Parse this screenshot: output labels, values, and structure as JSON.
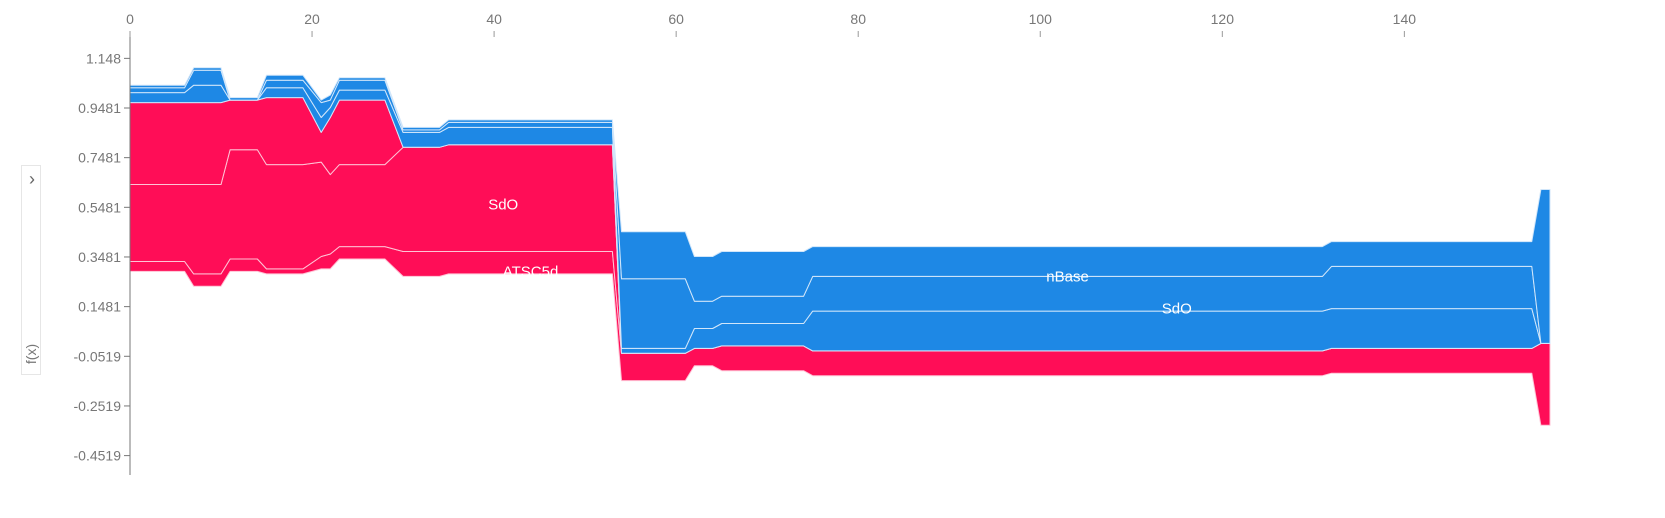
{
  "chart_data": {
    "type": "area",
    "ylabel": "f(x)",
    "x_ticks": [
      0,
      20,
      40,
      60,
      80,
      100,
      120,
      140
    ],
    "y_ticks": [
      "1.148",
      "0.9481",
      "0.7481",
      "0.5481",
      "0.3481",
      "0.1481",
      "-0.0519",
      "-0.2519",
      "-0.4519"
    ],
    "xlim": [
      0,
      156
    ],
    "ylim": [
      -0.53,
      1.23
    ],
    "colors": {
      "positive": "#ff0d57",
      "negative": "#1e88e5",
      "positive_edge": "#ffc3d5",
      "negative_edge": "#d1e6fa"
    },
    "samples": [
      {
        "x": 0,
        "base": 0.29,
        "pos": [
          0.04,
          0.31,
          0.33
        ],
        "neg": [
          0.04,
          0.02,
          0.01
        ]
      },
      {
        "x": 6,
        "base": 0.29,
        "pos": [
          0.04,
          0.31,
          0.33
        ],
        "neg": [
          0.04,
          0.02,
          0.01
        ]
      },
      {
        "x": 7,
        "base": 0.23,
        "pos": [
          0.05,
          0.36,
          0.33
        ],
        "neg": [
          0.07,
          0.06,
          0.01
        ]
      },
      {
        "x": 10,
        "base": 0.23,
        "pos": [
          0.05,
          0.36,
          0.33
        ],
        "neg": [
          0.07,
          0.06,
          0.01
        ]
      },
      {
        "x": 11,
        "base": 0.29,
        "pos": [
          0.05,
          0.44,
          0.2
        ],
        "neg": [
          0.0,
          0.0,
          0.01
        ]
      },
      {
        "x": 14,
        "base": 0.29,
        "pos": [
          0.05,
          0.44,
          0.2
        ],
        "neg": [
          0.0,
          0.0,
          0.01
        ]
      },
      {
        "x": 15,
        "base": 0.28,
        "pos": [
          0.02,
          0.42,
          0.27
        ],
        "neg": [
          0.04,
          0.03,
          0.02
        ]
      },
      {
        "x": 19,
        "base": 0.28,
        "pos": [
          0.02,
          0.42,
          0.27
        ],
        "neg": [
          0.04,
          0.03,
          0.02
        ]
      },
      {
        "x": 21,
        "base": 0.3,
        "pos": [
          0.05,
          0.38,
          0.12
        ],
        "neg": [
          0.06,
          0.06,
          0.01
        ]
      },
      {
        "x": 22,
        "base": 0.3,
        "pos": [
          0.06,
          0.32,
          0.23
        ],
        "neg": [
          0.04,
          0.03,
          0.02
        ]
      },
      {
        "x": 23,
        "base": 0.34,
        "pos": [
          0.05,
          0.33,
          0.26
        ],
        "neg": [
          0.04,
          0.04,
          0.01
        ]
      },
      {
        "x": 28,
        "base": 0.34,
        "pos": [
          0.05,
          0.33,
          0.26
        ],
        "neg": [
          0.04,
          0.04,
          0.01
        ]
      },
      {
        "x": 30,
        "base": 0.27,
        "pos": [
          0.1,
          0.42,
          0.0
        ],
        "neg": [
          0.06,
          0.01,
          0.01
        ]
      },
      {
        "x": 34,
        "base": 0.27,
        "pos": [
          0.1,
          0.42,
          0.0
        ],
        "neg": [
          0.06,
          0.01,
          0.01
        ]
      },
      {
        "x": 35,
        "base": 0.28,
        "pos": [
          0.09,
          0.43,
          0.0
        ],
        "neg": [
          0.07,
          0.02,
          0.01
        ]
      },
      {
        "x": 53,
        "base": 0.28,
        "pos": [
          0.09,
          0.43,
          0.0
        ],
        "neg": [
          0.07,
          0.02,
          0.01
        ]
      },
      {
        "x": 54,
        "base": -0.15,
        "pos": [
          0.11,
          0.0,
          0.0
        ],
        "neg": [
          0.02,
          0.28,
          0.19
        ]
      },
      {
        "x": 61,
        "base": -0.15,
        "pos": [
          0.11,
          0.0,
          0.0
        ],
        "neg": [
          0.02,
          0.28,
          0.19
        ]
      },
      {
        "x": 62,
        "base": -0.09,
        "pos": [
          0.07,
          0.0,
          0.0
        ],
        "neg": [
          0.08,
          0.11,
          0.18
        ]
      },
      {
        "x": 64,
        "base": -0.09,
        "pos": [
          0.07,
          0.0,
          0.0
        ],
        "neg": [
          0.08,
          0.11,
          0.18
        ]
      },
      {
        "x": 65,
        "base": -0.11,
        "pos": [
          0.1,
          0.0,
          0.0
        ],
        "neg": [
          0.09,
          0.11,
          0.18
        ]
      },
      {
        "x": 74,
        "base": -0.11,
        "pos": [
          0.1,
          0.0,
          0.0
        ],
        "neg": [
          0.09,
          0.11,
          0.18
        ]
      },
      {
        "x": 75,
        "base": -0.13,
        "pos": [
          0.1,
          0.0,
          0.0
        ],
        "neg": [
          0.16,
          0.14,
          0.12
        ]
      },
      {
        "x": 131,
        "base": -0.13,
        "pos": [
          0.1,
          0.0,
          0.0
        ],
        "neg": [
          0.16,
          0.14,
          0.12
        ]
      },
      {
        "x": 132,
        "base": -0.12,
        "pos": [
          0.1,
          0.0,
          0.0
        ],
        "neg": [
          0.16,
          0.17,
          0.1
        ]
      },
      {
        "x": 154,
        "base": -0.12,
        "pos": [
          0.1,
          0.0,
          0.0
        ],
        "neg": [
          0.16,
          0.17,
          0.1
        ]
      },
      {
        "x": 155,
        "base": -0.33,
        "pos": [
          0.33,
          0.0,
          0.0
        ],
        "neg": [
          0.0,
          0.0,
          0.62
        ]
      },
      {
        "x": 156,
        "base": -0.33,
        "pos": [
          0.33,
          0.0,
          0.0
        ],
        "neg": [
          0.0,
          0.0,
          0.62
        ]
      }
    ],
    "annotations": [
      {
        "text": "SdO",
        "x": 41,
        "y": 0.56,
        "color": "#ffffff"
      },
      {
        "text": "ATSC5d",
        "x": 44,
        "y": 0.29,
        "color": "#ffffff"
      },
      {
        "text": "nBase",
        "x": 103,
        "y": 0.27,
        "color": "#ffffff"
      },
      {
        "text": "SdO",
        "x": 115,
        "y": 0.14,
        "color": "#ffffff"
      }
    ]
  },
  "ui": {
    "expand_icon": "chevron-right-icon",
    "expand_glyph": "›",
    "ylabel": "f(x)"
  }
}
